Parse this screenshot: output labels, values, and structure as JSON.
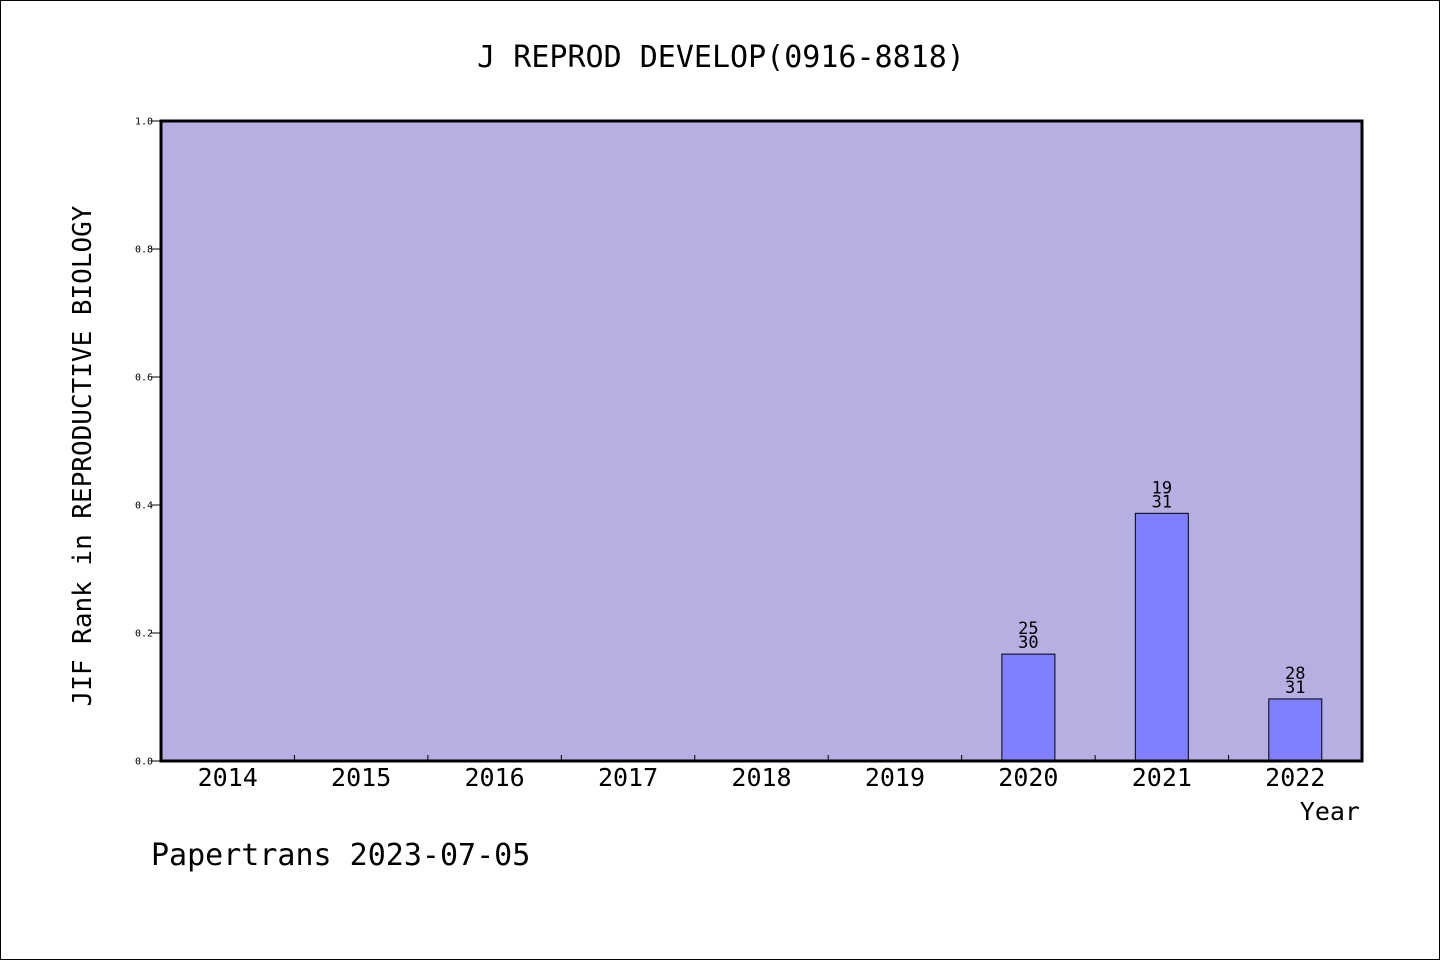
{
  "chart_data": {
    "type": "bar",
    "title": "J REPROD DEVELOP(0916-8818)",
    "xlabel": "Year",
    "ylabel": "JIF Rank in REPRODUCTIVE BIOLOGY",
    "categories": [
      "2014",
      "2015",
      "2016",
      "2017",
      "2018",
      "2019",
      "2020",
      "2021",
      "2022"
    ],
    "values": [
      null,
      null,
      null,
      null,
      null,
      null,
      0.167,
      0.387,
      0.097
    ],
    "bar_labels": [
      null,
      null,
      null,
      null,
      null,
      null,
      [
        "25",
        "30"
      ],
      [
        "19",
        "31"
      ],
      [
        "28",
        "31"
      ]
    ],
    "ylim": [
      0.0,
      1.0
    ],
    "yticks": [
      "0.0",
      "0.2",
      "0.4",
      "0.6",
      "0.8",
      "1.0"
    ],
    "ytick_values": [
      0.0,
      0.2,
      0.4,
      0.6,
      0.8,
      1.0
    ],
    "grid": false,
    "colors": {
      "plot_background": "#b6b0e2",
      "bar_fill": "#8080ff",
      "bar_stroke": "#000000",
      "axis": "#000000"
    }
  },
  "footer": "Papertrans 2023-07-05"
}
